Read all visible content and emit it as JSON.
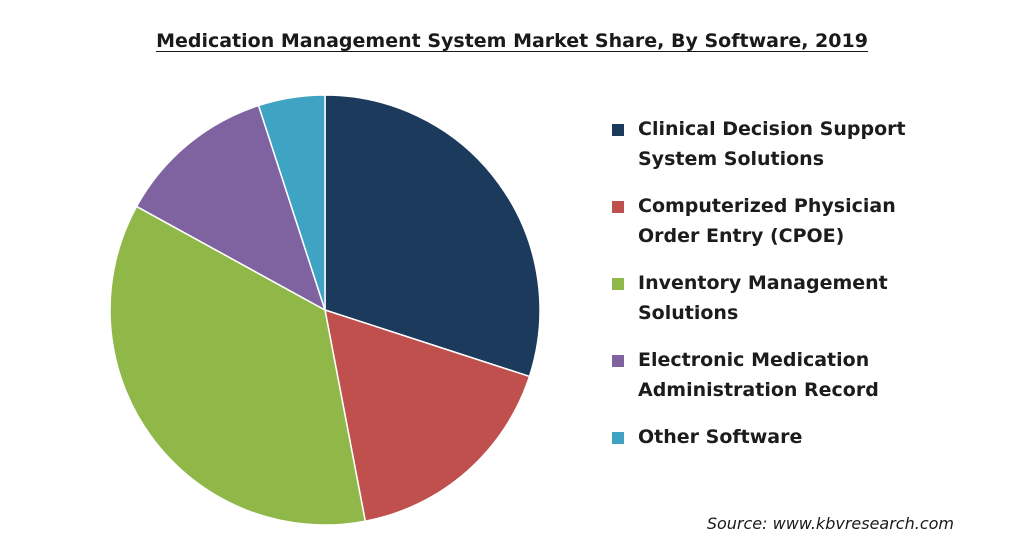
{
  "chart_data": {
    "type": "pie",
    "title": "Medication Management System Market Share, By Software, 2019",
    "source": "Source: www.kbvresearch.com",
    "legend_position": "right",
    "slices": [
      {
        "label": "Clinical Decision Support\nSystem Solutions",
        "value": 30,
        "color": "#1b3a5c"
      },
      {
        "label": "Computerized Physician\nOrder Entry (CPOE)",
        "value": 17,
        "color": "#c0504d"
      },
      {
        "label": "Inventory Management\nSolutions",
        "value": 36,
        "color": "#8fb849"
      },
      {
        "label": "Electronic Medication\nAdministration Record",
        "value": 12,
        "color": "#7f63a0"
      },
      {
        "label": "Other Software",
        "value": 5,
        "color": "#3fa4c4"
      }
    ]
  }
}
